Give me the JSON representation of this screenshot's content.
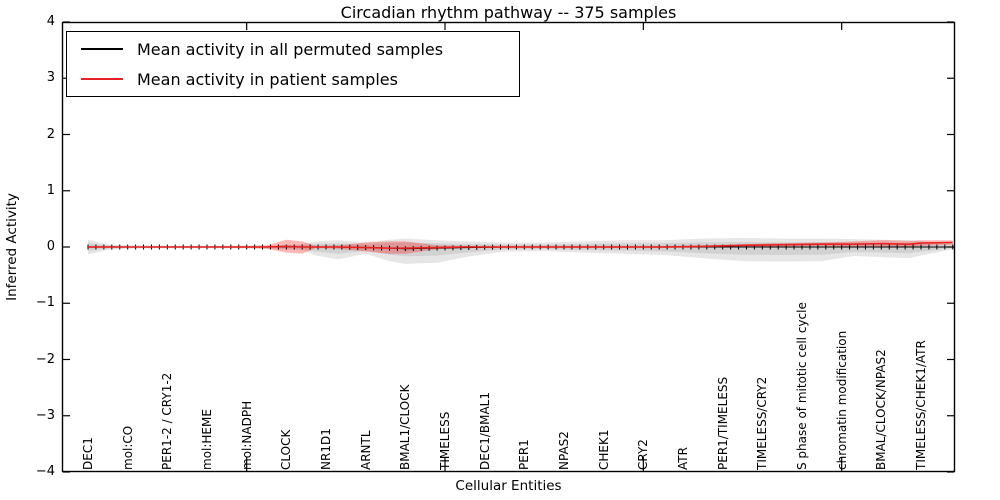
{
  "title": "Circadian rhythm pathway -- 375 samples",
  "legend": {
    "items": [
      {
        "label": "Mean activity in all permuted samples",
        "color": "#000000"
      },
      {
        "label": "Mean activity in patient samples",
        "color": "#e62222"
      }
    ]
  },
  "axes": {
    "ylabel": "Inferred Activity",
    "xlabel": "Cellular Entities",
    "y_tick_labels": [
      "4",
      "3",
      "2",
      "1",
      "0",
      "−1",
      "−2",
      "−3",
      "−4"
    ]
  },
  "chart_data": {
    "type": "line",
    "title": "Circadian rhythm pathway -- 375 samples",
    "xlabel": "Cellular Entities",
    "ylabel": "Inferred Activity",
    "ylim": [
      -4,
      4
    ],
    "y_ticks": [
      4,
      3,
      2,
      1,
      0,
      -1,
      -2,
      -3,
      -4
    ],
    "legend_position": "upper left",
    "grid": false,
    "x_labels": [
      "DEC1",
      "mol:CO",
      "PER1-2 / CRY1-2",
      "mol:HEME",
      "mol:NADPH",
      "CLOCK",
      "NR1D1",
      "ARNTL",
      "BMAL1/CLOCK",
      "TIMELESS",
      "DEC1/BMAL1",
      "PER1",
      "NPAS2",
      "CHEK1",
      "CRY2",
      "ATR",
      "PER1/TIMELESS",
      "TIMELESS/CRY2",
      "S phase of mitotic cell cycle",
      "chromatin modification",
      "BMAL/CLOCK/NPAS2",
      "TIMELESS/CHEK1/ATR"
    ],
    "x_major_tick_indices": [
      4,
      9,
      14,
      19
    ],
    "x_index": [
      0,
      0.5,
      1,
      2,
      3,
      4,
      4.5,
      5,
      5.4,
      5.75,
      6.3,
      7,
      7.6,
      8,
      8.8,
      9.5,
      10.5,
      11.5,
      12.5,
      13.5,
      14.5,
      15.5,
      16.5,
      17.5,
      18.5,
      19.3,
      20,
      20.7,
      21,
      21.8
    ],
    "series": [
      {
        "name": "Mean activity in all permuted samples",
        "color": "#000000",
        "style": "line_with_tick_markers",
        "values": [
          0,
          0,
          0,
          0,
          0,
          0,
          0,
          0,
          0,
          0,
          0,
          -0.01,
          -0.02,
          -0.03,
          -0.02,
          -0.01,
          0,
          0,
          0,
          0,
          0,
          0,
          0,
          0,
          0,
          0,
          0,
          0,
          0,
          0
        ]
      },
      {
        "name": "Mean activity in patient samples",
        "color": "#e62222",
        "style": "line",
        "values": [
          0,
          0,
          0,
          0,
          0,
          0,
          0,
          0.01,
          0,
          0,
          0,
          -0.01,
          -0.02,
          -0.02,
          -0.01,
          0,
          0,
          0,
          0,
          0,
          0,
          0.01,
          0.03,
          0.04,
          0.05,
          0.05,
          0.06,
          0.05,
          0.07,
          0.08
        ]
      }
    ],
    "bands": [
      {
        "name": "permuted samples spread",
        "color": "rgba(128,128,128,0.20)",
        "inner_scale": 0.55,
        "upper": [
          0.13,
          0.05,
          0.03,
          0.025,
          0.025,
          0.03,
          0.03,
          0.04,
          0.05,
          0.1,
          0.12,
          0.08,
          0.13,
          0.15,
          0.12,
          0.1,
          0.08,
          0.08,
          0.1,
          0.12,
          0.12,
          0.15,
          0.16,
          0.15,
          0.15,
          0.14,
          0.13,
          0.12,
          0.1,
          0.06
        ],
        "lower": [
          -0.13,
          -0.05,
          -0.03,
          -0.025,
          -0.025,
          -0.03,
          -0.03,
          -0.05,
          -0.06,
          -0.15,
          -0.22,
          -0.12,
          -0.25,
          -0.3,
          -0.28,
          -0.18,
          -0.08,
          -0.07,
          -0.1,
          -0.12,
          -0.14,
          -0.2,
          -0.25,
          -0.26,
          -0.25,
          -0.16,
          -0.18,
          -0.2,
          -0.15,
          -0.04
        ]
      },
      {
        "name": "patient samples spread",
        "color": "rgba(255,0,0,0.28)",
        "upper": [
          0.02,
          0.015,
          0.012,
          0.012,
          0.012,
          0.015,
          0.03,
          0.13,
          0.1,
          0.02,
          0.03,
          0.08,
          0.1,
          0.1,
          0.03,
          0.02,
          0.02,
          0.02,
          0.02,
          0.02,
          0.02,
          0.03,
          0.05,
          0.07,
          0.08,
          0.1,
          0.12,
          0.11,
          0.12,
          0.12
        ],
        "lower": [
          -0.02,
          -0.015,
          -0.012,
          -0.012,
          -0.012,
          -0.015,
          -0.03,
          -0.1,
          -0.12,
          -0.02,
          -0.03,
          -0.08,
          -0.12,
          -0.12,
          -0.04,
          -0.02,
          -0.02,
          -0.02,
          -0.02,
          -0.02,
          -0.02,
          -0.01,
          0.0,
          0.01,
          0.02,
          0.0,
          0.01,
          0.0,
          0.02,
          0.04
        ]
      }
    ],
    "marker_step_index": 0.2
  }
}
